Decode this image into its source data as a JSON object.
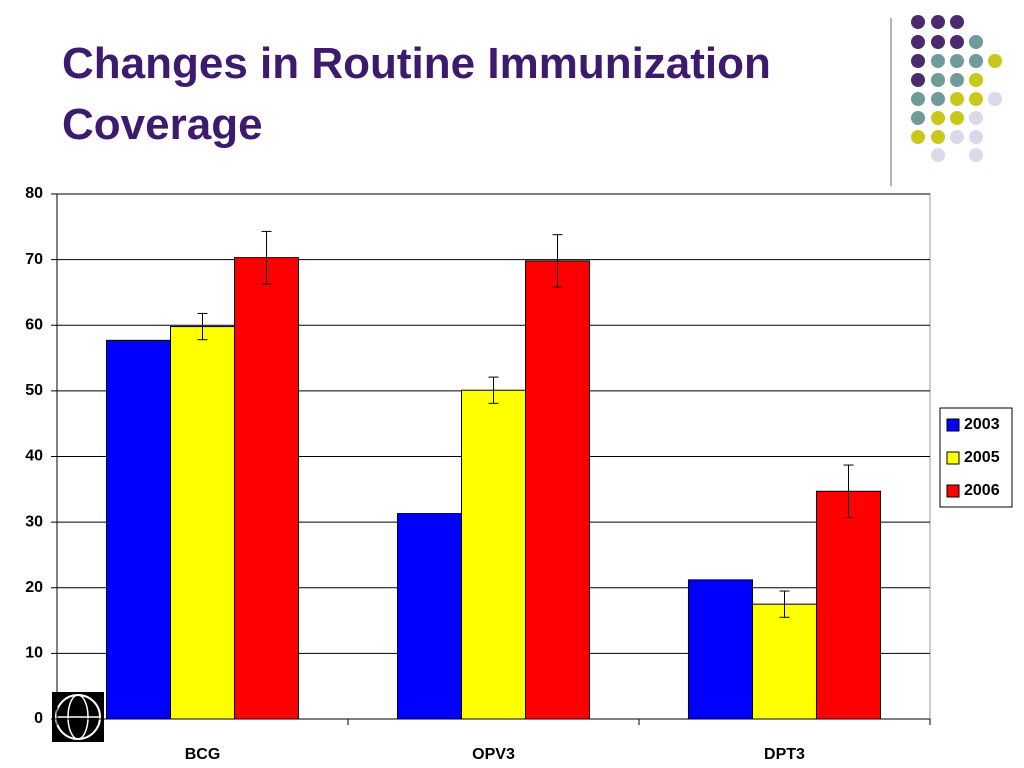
{
  "chart_data": {
    "type": "bar",
    "title": "Changes in Routine Immunization Coverage",
    "categories": [
      "BCG",
      "OPV3",
      "DPT3"
    ],
    "series": [
      {
        "name": "2003",
        "color": "#0000ff",
        "values": [
          57.7,
          31.3,
          21.2
        ]
      },
      {
        "name": "2005",
        "color": "#ffff00",
        "values": [
          59.8,
          50.1,
          17.5
        ],
        "errors": [
          2,
          2,
          2
        ]
      },
      {
        "name": "2006",
        "color": "#ff0000",
        "values": [
          70.3,
          69.8,
          34.7
        ],
        "errors": [
          4,
          4,
          4
        ]
      }
    ],
    "ylim": [
      0,
      80
    ],
    "yticks": [
      0,
      10,
      20,
      30,
      40,
      50,
      60,
      70,
      80
    ],
    "grid": true,
    "legend": "right"
  }
}
